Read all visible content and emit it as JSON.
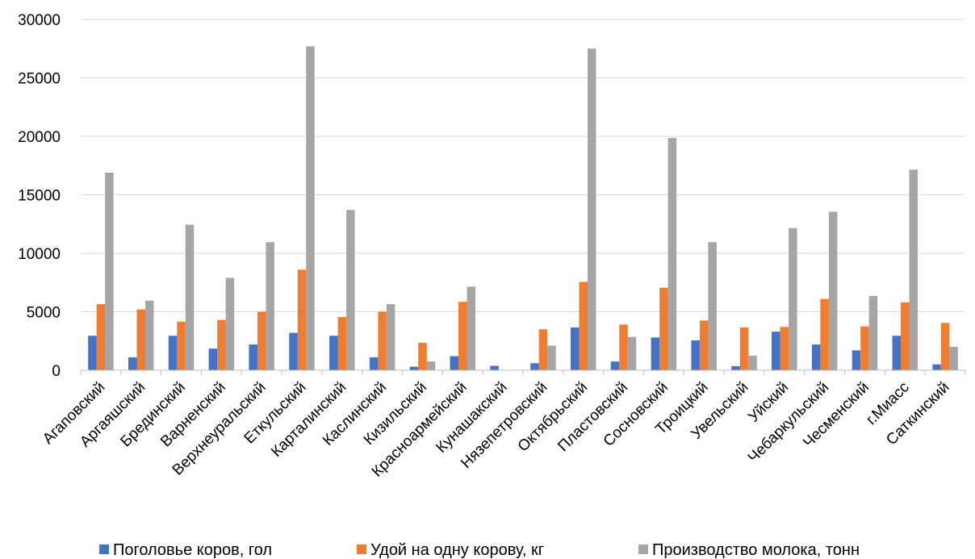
{
  "chart_data": {
    "type": "bar",
    "title": "",
    "xlabel": "",
    "ylabel": "",
    "ylim": [
      0,
      30000
    ],
    "yticks": [
      0,
      5000,
      10000,
      15000,
      20000,
      25000,
      30000
    ],
    "grid": "horizontal",
    "legend_position": "bottom",
    "categories": [
      "Агаповский",
      "Аргаяшский",
      "Брединский",
      "Варненский",
      "Верхнеуральский",
      "Еткульский",
      "Карталинский",
      "Каслинский",
      "Кизильский",
      "Красноармейский",
      "Кунашакский",
      "Нязепетровский",
      "Октябрьский",
      "Пластовский",
      "Сосновский",
      "Троицкий",
      "Увельский",
      "Уйский",
      "Чебаркульский",
      "Чесменский",
      "г.Миасс",
      "Саткинский"
    ],
    "series": [
      {
        "name": "Поголовье коров, гол",
        "color": "#4472C4",
        "values": [
          2950,
          1100,
          2950,
          1850,
          2200,
          3200,
          2950,
          1100,
          300,
          1200,
          380,
          600,
          3650,
          750,
          2800,
          2550,
          350,
          3300,
          2200,
          1700,
          2950,
          500
        ]
      },
      {
        "name": "Удой на одну корову, кг",
        "color": "#ED7D31",
        "values": [
          5650,
          5200,
          4150,
          4300,
          5000,
          8600,
          4550,
          5000,
          2350,
          5850,
          0,
          3500,
          7550,
          3900,
          7050,
          4250,
          3650,
          3700,
          6100,
          3750,
          5800,
          4050
        ]
      },
      {
        "name": "Производство молока, тонн",
        "color": "#A5A5A5",
        "values": [
          16900,
          5950,
          12450,
          7900,
          10950,
          27700,
          13700,
          5650,
          750,
          7150,
          0,
          2100,
          27500,
          2850,
          19850,
          10950,
          1250,
          12150,
          13550,
          6350,
          17150,
          2000
        ]
      }
    ]
  }
}
